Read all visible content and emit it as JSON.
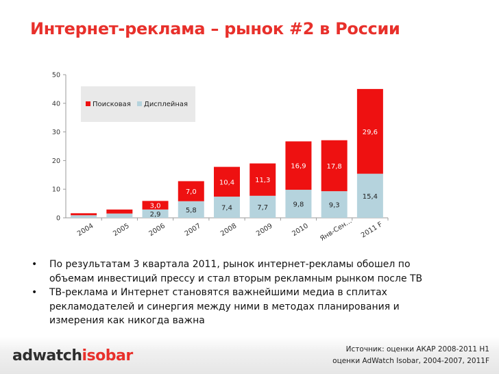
{
  "slide": {
    "title": "Интернет-реклама – рынок #2 в России"
  },
  "chart_data": {
    "type": "bar",
    "stacked": true,
    "categories": [
      "2004",
      "2005",
      "2006",
      "2007",
      "2008",
      "2009",
      "2010",
      "Янв-Сен...",
      "2011 F"
    ],
    "series": [
      {
        "name": "Дисплейная",
        "color": "#b5d3dd",
        "values": [
          0.9,
          1.5,
          2.9,
          5.8,
          7.4,
          7.7,
          9.8,
          9.3,
          15.4
        ],
        "labels": [
          "",
          "",
          "2,9",
          "5,8",
          "7,4",
          "7,7",
          "9,8",
          "9,3",
          "15,4"
        ]
      },
      {
        "name": "Поисковая",
        "color": "#ee1111",
        "values": [
          0.7,
          1.4,
          3.0,
          7.0,
          10.4,
          11.3,
          16.9,
          17.8,
          29.6
        ],
        "labels": [
          "",
          "",
          "3,0",
          "7,0",
          "10,4",
          "11,3",
          "16,9",
          "17,8",
          "29,6"
        ]
      }
    ],
    "ylim": [
      0,
      50
    ],
    "yticks": [
      0,
      10,
      20,
      30,
      40,
      50
    ],
    "legend": [
      "Поисковая",
      "Дисплейная"
    ],
    "legend_position": "top-left",
    "grid": false
  },
  "bullets": [
    "По результатам 3 квартала 2011, рынок интернет-рекламы обошел по объемам инвестиций прессу и стал вторым рекламным рынком после ТВ",
    "ТВ-реклама и Интернет становятся важнейшими медиа в сплитах рекламодателей и синергия между ними в методах планирования и измерения как никогда важна"
  ],
  "bullet_symbol": "•",
  "footer": {
    "logo_part1": "adwatch",
    "logo_part2": "isobar",
    "source_line1": "Источник: оценки АКАР 2008-2011 H1",
    "source_line2": "оценки AdWatch Isobar, 2004-2007, 2011F"
  }
}
